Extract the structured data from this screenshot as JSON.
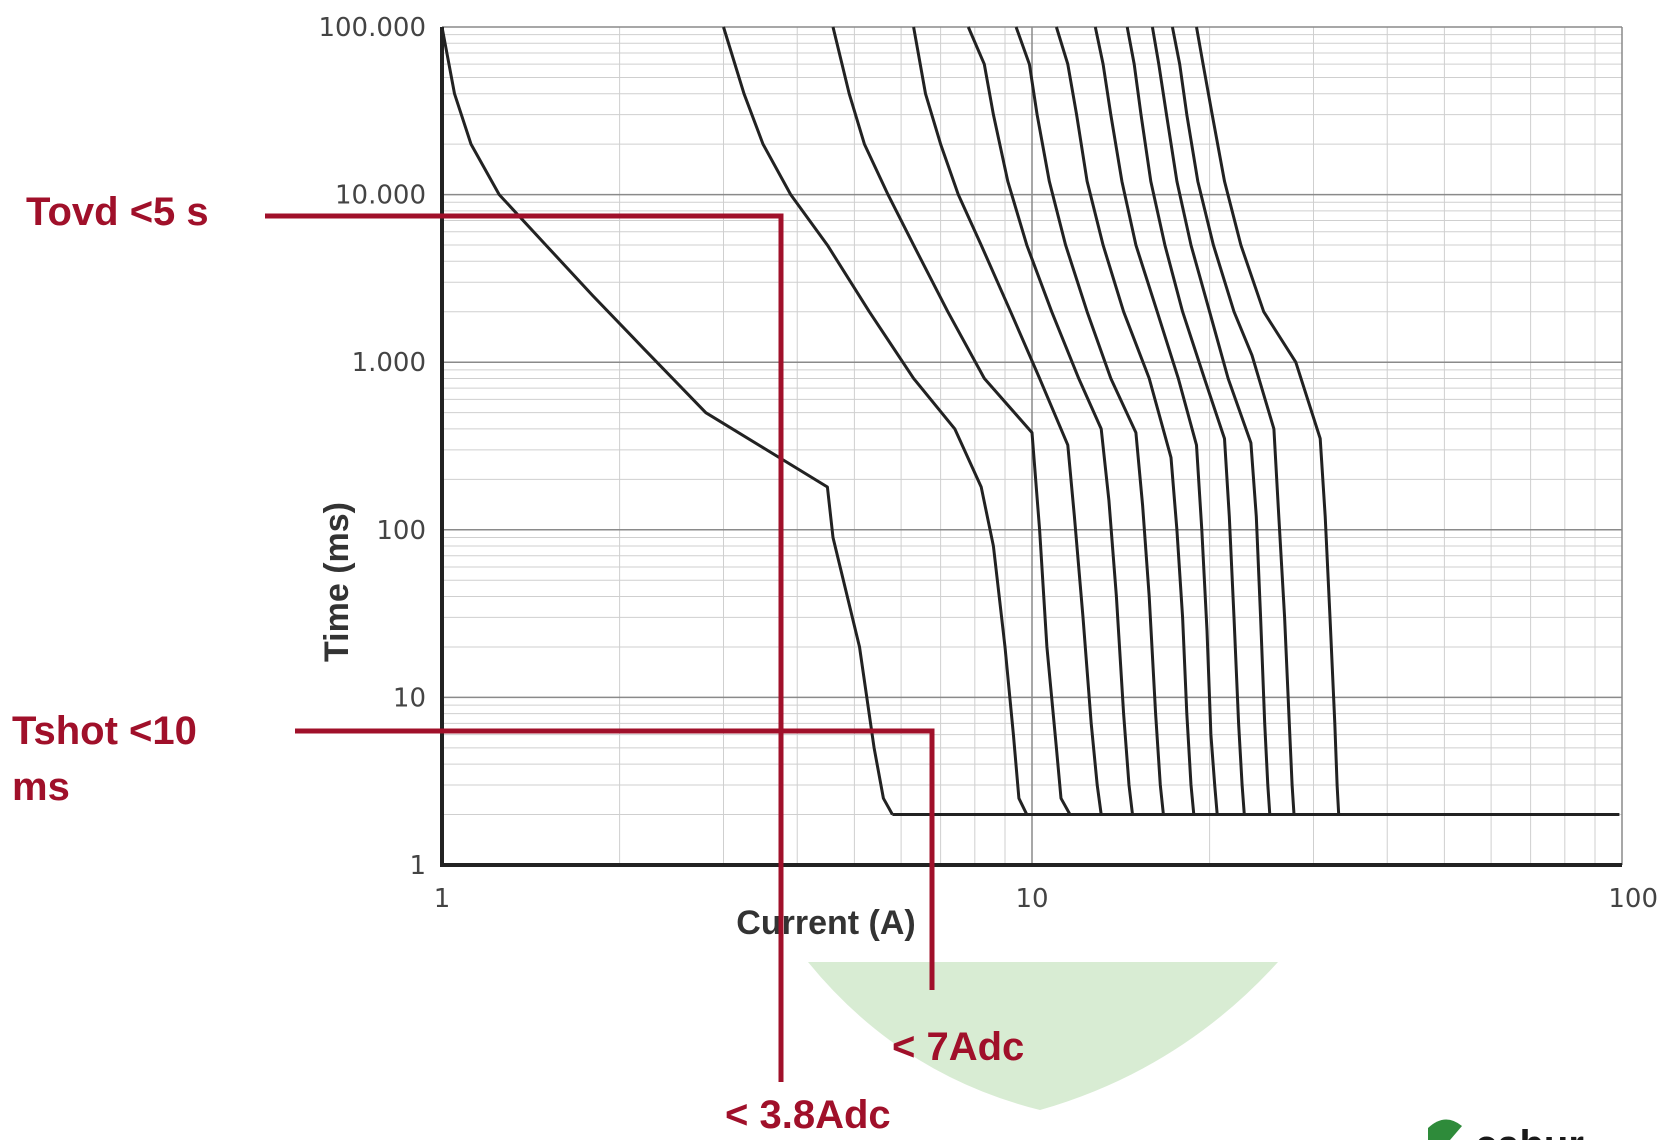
{
  "chart_data": {
    "type": "line",
    "xlabel": "Current (A)",
    "ylabel": "Time (ms)",
    "xscale": "log",
    "yscale": "log",
    "xlim": [
      1,
      100
    ],
    "ylim": [
      1,
      100000
    ],
    "xticks": [
      {
        "value": 1,
        "label": "1"
      },
      {
        "value": 10,
        "label": "10"
      },
      {
        "value": 100,
        "label": "100"
      }
    ],
    "yticks": [
      {
        "value": 1,
        "label": "1"
      },
      {
        "value": 10,
        "label": "10"
      },
      {
        "value": 100,
        "label": "100"
      },
      {
        "value": 1000,
        "label": "1.000"
      },
      {
        "value": 10000,
        "label": "10.000"
      },
      {
        "value": 100000,
        "label": "100.000"
      }
    ],
    "grid": true,
    "colors": {
      "curve": "#222222",
      "annotation": "#a0102a",
      "grid_major": "#8a8a8a",
      "grid_minor": "#cfcfcf",
      "highlight": "#d8ecd3"
    },
    "series": [
      {
        "points": [
          [
            1.0,
            100000
          ],
          [
            1.05,
            40000
          ],
          [
            1.12,
            20000
          ],
          [
            1.25,
            10000
          ],
          [
            1.5,
            5000
          ],
          [
            1.8,
            2500
          ],
          [
            2.2,
            1200
          ],
          [
            2.8,
            500
          ],
          [
            4.5,
            180
          ],
          [
            4.6,
            90
          ],
          [
            5.1,
            20
          ],
          [
            5.4,
            5
          ],
          [
            5.6,
            2.5
          ],
          [
            5.8,
            2
          ]
        ]
      },
      {
        "points": [
          [
            3.0,
            100000
          ],
          [
            3.25,
            40000
          ],
          [
            3.5,
            20000
          ],
          [
            3.9,
            10000
          ],
          [
            4.5,
            5000
          ],
          [
            5.3,
            2000
          ],
          [
            6.3,
            800
          ],
          [
            7.4,
            400
          ],
          [
            8.2,
            180
          ],
          [
            8.6,
            80
          ],
          [
            9.0,
            20
          ],
          [
            9.3,
            6
          ],
          [
            9.5,
            2.5
          ],
          [
            9.8,
            2
          ]
        ]
      },
      {
        "points": [
          [
            4.6,
            100000
          ],
          [
            4.9,
            40000
          ],
          [
            5.2,
            20000
          ],
          [
            5.7,
            10000
          ],
          [
            6.3,
            5000
          ],
          [
            7.2,
            2000
          ],
          [
            8.3,
            800
          ],
          [
            10.0,
            380
          ],
          [
            10.3,
            100
          ],
          [
            10.6,
            20
          ],
          [
            11.0,
            5
          ],
          [
            11.2,
            2.5
          ],
          [
            11.6,
            2
          ]
        ]
      },
      {
        "points": [
          [
            6.3,
            100000
          ],
          [
            6.6,
            40000
          ],
          [
            7.0,
            20000
          ],
          [
            7.5,
            10000
          ],
          [
            8.2,
            5000
          ],
          [
            9.2,
            2000
          ],
          [
            10.3,
            800
          ],
          [
            11.5,
            320
          ],
          [
            11.8,
            120
          ],
          [
            12.2,
            30
          ],
          [
            12.6,
            7
          ],
          [
            12.9,
            3
          ],
          [
            13.1,
            2
          ]
        ]
      },
      {
        "points": [
          [
            7.8,
            100000
          ],
          [
            8.3,
            60000
          ],
          [
            8.6,
            30000
          ],
          [
            9.1,
            12000
          ],
          [
            9.8,
            5000
          ],
          [
            10.8,
            2000
          ],
          [
            12.0,
            800
          ],
          [
            13.1,
            400
          ],
          [
            13.5,
            150
          ],
          [
            13.9,
            40
          ],
          [
            14.3,
            8
          ],
          [
            14.6,
            3
          ],
          [
            14.8,
            2
          ]
        ]
      },
      {
        "points": [
          [
            9.4,
            100000
          ],
          [
            9.9,
            60000
          ],
          [
            10.2,
            30000
          ],
          [
            10.7,
            12000
          ],
          [
            11.4,
            5000
          ],
          [
            12.4,
            2000
          ],
          [
            13.6,
            800
          ],
          [
            15.0,
            380
          ],
          [
            15.4,
            140
          ],
          [
            15.8,
            40
          ],
          [
            16.2,
            8
          ],
          [
            16.5,
            3
          ],
          [
            16.7,
            2
          ]
        ]
      },
      {
        "points": [
          [
            11.0,
            100000
          ],
          [
            11.5,
            60000
          ],
          [
            11.9,
            30000
          ],
          [
            12.4,
            12000
          ],
          [
            13.2,
            5000
          ],
          [
            14.3,
            2000
          ],
          [
            15.8,
            800
          ],
          [
            17.2,
            270
          ],
          [
            17.6,
            100
          ],
          [
            18.0,
            30
          ],
          [
            18.3,
            8
          ],
          [
            18.6,
            3
          ],
          [
            18.8,
            2
          ]
        ]
      },
      {
        "points": [
          [
            12.8,
            100000
          ],
          [
            13.2,
            60000
          ],
          [
            13.6,
            30000
          ],
          [
            14.2,
            12000
          ],
          [
            15.0,
            5000
          ],
          [
            16.3,
            2000
          ],
          [
            17.7,
            800
          ],
          [
            19.0,
            320
          ],
          [
            19.4,
            100
          ],
          [
            19.8,
            25
          ],
          [
            20.1,
            6
          ],
          [
            20.4,
            3
          ],
          [
            20.6,
            2
          ]
        ]
      },
      {
        "points": [
          [
            14.5,
            100000
          ],
          [
            14.9,
            60000
          ],
          [
            15.3,
            30000
          ],
          [
            15.9,
            12000
          ],
          [
            16.8,
            5000
          ],
          [
            18.0,
            2000
          ],
          [
            19.6,
            800
          ],
          [
            21.2,
            350
          ],
          [
            21.6,
            120
          ],
          [
            22.0,
            30
          ],
          [
            22.4,
            7
          ],
          [
            22.7,
            3
          ],
          [
            22.9,
            2
          ]
        ]
      },
      {
        "points": [
          [
            16.0,
            100000
          ],
          [
            16.4,
            60000
          ],
          [
            16.9,
            30000
          ],
          [
            17.6,
            12000
          ],
          [
            18.6,
            5000
          ],
          [
            20.0,
            2000
          ],
          [
            21.5,
            800
          ],
          [
            23.5,
            330
          ],
          [
            24.0,
            120
          ],
          [
            24.4,
            30
          ],
          [
            24.8,
            7
          ],
          [
            25.1,
            3
          ],
          [
            25.3,
            2
          ]
        ]
      },
      {
        "points": [
          [
            17.3,
            100000
          ],
          [
            17.8,
            60000
          ],
          [
            18.3,
            30000
          ],
          [
            19.1,
            12000
          ],
          [
            20.3,
            5000
          ],
          [
            22.0,
            2000
          ],
          [
            23.6,
            1100
          ],
          [
            25.7,
            400
          ],
          [
            26.2,
            120
          ],
          [
            26.8,
            30
          ],
          [
            27.3,
            7
          ],
          [
            27.6,
            3
          ],
          [
            27.8,
            2
          ]
        ]
      },
      {
        "points": [
          [
            19.0,
            100000
          ],
          [
            19.5,
            60000
          ],
          [
            20.2,
            30000
          ],
          [
            21.2,
            12000
          ],
          [
            22.6,
            5000
          ],
          [
            24.7,
            2000
          ],
          [
            28.0,
            1000
          ],
          [
            30.8,
            350
          ],
          [
            31.4,
            120
          ],
          [
            32.0,
            30
          ],
          [
            32.6,
            7
          ],
          [
            32.9,
            3
          ],
          [
            33.1,
            2
          ]
        ]
      },
      {
        "points": [
          [
            5.8,
            2
          ],
          [
            99,
            2
          ]
        ]
      }
    ],
    "annotations": [
      {
        "id": "tovd",
        "text": "Tovd <5 s",
        "x": 3.8,
        "y": 7000
      },
      {
        "id": "tshot",
        "text": "Tshot <10 ms",
        "x": 7.0,
        "y": 6.5
      },
      {
        "id": "cur7",
        "text": "< 7Adc",
        "x": 7.0
      },
      {
        "id": "cur38",
        "text": "< 3.8Adc",
        "x": 3.8
      }
    ]
  },
  "labels": {
    "tovd": "Tovd <5 s",
    "tshot_line1": "Tshot <10",
    "tshot_line2": "ms",
    "cur7": "< 7Adc",
    "cur38": "< 3.8Adc",
    "logo": "cabur"
  }
}
